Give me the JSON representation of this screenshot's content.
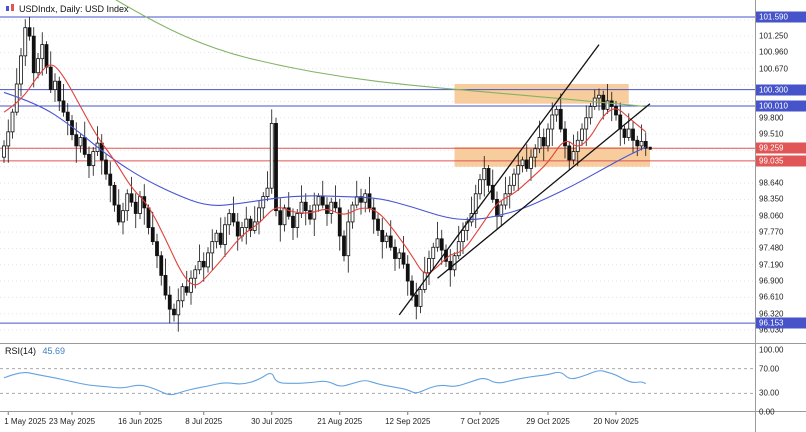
{
  "symbol_label": {
    "text": "USDIndx, Daily: USD Index"
  },
  "colors": {
    "up": "#ffffff",
    "down": "#111111",
    "candle_border": "#111111",
    "ma_fast": "#e2403a",
    "ma_mid": "#4a55d2",
    "ma_slow": "#82b366",
    "level_blue": "#4653c9",
    "level_red": "#e05555",
    "zone": "#f7cd9e",
    "trend": "#111111",
    "rsi": "#63a3e0",
    "grid": "#e3e3e3",
    "axis_text": "#222222",
    "separator": "#9a9a9a"
  },
  "price_axis": {
    "ticks": [
      {
        "label": "101.250",
        "price": 101.25
      },
      {
        "label": "100.960",
        "price": 100.96
      },
      {
        "label": "100.670",
        "price": 100.67
      },
      {
        "label": "99.800",
        "price": 99.8
      },
      {
        "label": "99.510",
        "price": 99.51
      },
      {
        "label": "98.640",
        "price": 98.64
      },
      {
        "label": "98.350",
        "price": 98.35
      },
      {
        "label": "98.060",
        "price": 98.06
      },
      {
        "label": "97.770",
        "price": 97.77
      },
      {
        "label": "97.480",
        "price": 97.48
      },
      {
        "label": "97.190",
        "price": 97.19
      },
      {
        "label": "96.900",
        "price": 96.9
      },
      {
        "label": "96.610",
        "price": 96.61
      },
      {
        "label": "96.320",
        "price": 96.32
      },
      {
        "label": "96.030",
        "price": 96.03
      }
    ]
  },
  "time_axis": {
    "labels": [
      {
        "text": "1 May 2025",
        "index": 1
      },
      {
        "text": "23 May 2025",
        "index": 16
      },
      {
        "text": "16 Jun 2025",
        "index": 32
      },
      {
        "text": "8 Jul 2025",
        "index": 47
      },
      {
        "text": "30 Jul 2025",
        "index": 63
      },
      {
        "text": "21 Aug 2025",
        "index": 79
      },
      {
        "text": "12 Sep 2025",
        "index": 95
      },
      {
        "text": "7 Oct 2025",
        "index": 112
      },
      {
        "text": "29 Oct 2025",
        "index": 128
      },
      {
        "text": "20 Nov 2025",
        "index": 144
      }
    ]
  },
  "chart_data": {
    "type": "candlestick",
    "instrument": "USDIndx",
    "timeframe": "Daily",
    "description": "USD Index",
    "price_range": [
      96.03,
      101.59
    ],
    "current_price": 99.259,
    "open_first": 99.1,
    "closes": [
      99.3,
      99.55,
      99.9,
      100.4,
      100.9,
      101.4,
      101.25,
      100.6,
      100.85,
      101.1,
      100.7,
      100.3,
      100.45,
      100.1,
      99.9,
      99.75,
      99.5,
      99.3,
      99.45,
      99.15,
      98.95,
      99.2,
      99.35,
      99.05,
      98.8,
      98.6,
      98.25,
      97.95,
      98.15,
      98.45,
      98.3,
      98.1,
      98.4,
      98.2,
      97.85,
      97.6,
      97.35,
      97.0,
      96.65,
      96.4,
      96.3,
      96.55,
      96.8,
      96.7,
      96.95,
      97.1,
      97.25,
      97.15,
      97.4,
      97.6,
      97.75,
      97.55,
      97.9,
      98.1,
      97.95,
      97.7,
      97.85,
      98.0,
      97.8,
      97.95,
      98.2,
      98.4,
      98.55,
      99.7,
      98.15,
      97.9,
      98.2,
      98.05,
      97.85,
      98.1,
      98.3,
      98.15,
      98.0,
      98.25,
      98.4,
      98.25,
      98.1,
      98.3,
      98.2,
      97.7,
      97.35,
      97.95,
      98.25,
      98.4,
      98.3,
      98.45,
      98.2,
      98.0,
      97.8,
      97.6,
      97.7,
      97.5,
      97.3,
      97.4,
      97.2,
      96.9,
      96.65,
      96.45,
      96.75,
      97.05,
      97.3,
      97.5,
      97.65,
      97.45,
      97.25,
      97.1,
      97.35,
      97.6,
      97.8,
      97.95,
      98.1,
      98.45,
      98.7,
      98.9,
      98.6,
      98.35,
      98.05,
      98.25,
      98.45,
      98.6,
      98.8,
      98.95,
      99.05,
      98.9,
      99.1,
      99.25,
      99.45,
      99.3,
      99.6,
      99.85,
      99.95,
      99.6,
      99.3,
      99.05,
      99.2,
      99.4,
      99.6,
      99.8,
      100.0,
      100.15,
      100.2,
      99.95,
      100.1,
      100.0,
      99.85,
      99.6,
      99.45,
      99.6,
      99.4,
      99.3,
      99.38,
      99.26
    ],
    "wick_high_cycle": [
      0.1,
      0.22,
      0.06,
      0.28,
      0.14,
      0.08,
      0.3,
      0.16
    ],
    "wick_low_cycle": [
      0.18,
      0.08,
      0.26,
      0.1,
      0.3,
      0.12,
      0.06,
      0.22
    ],
    "special_candles": {
      "5": {
        "h": 101.55
      },
      "6": {
        "h": 101.59
      },
      "39": {
        "l": 96.15
      },
      "40": {
        "l": 96.18
      },
      "63": {
        "h": 99.95,
        "l": 98.45
      },
      "97": {
        "l": 96.22
      },
      "139": {
        "h": 100.3
      },
      "140": {
        "h": 100.32
      },
      "151": {
        "l": 99.12
      }
    },
    "levels": [
      {
        "price": 101.59,
        "label": "101.590",
        "color_key": "level_blue"
      },
      {
        "price": 100.3,
        "label": "100.300",
        "color_key": "level_blue"
      },
      {
        "price": 100.01,
        "label": "100.010",
        "color_key": "level_blue"
      },
      {
        "price": 99.259,
        "label": "99.259",
        "color_key": "level_red"
      },
      {
        "price": 99.035,
        "label": "99.035",
        "color_key": "level_red"
      },
      {
        "price": 96.153,
        "label": "96.153",
        "color_key": "level_blue"
      }
    ],
    "zones": [
      {
        "price_top": 100.4,
        "price_bottom": 100.05,
        "index_from": 106,
        "index_to": 147
      },
      {
        "price_top": 99.28,
        "price_bottom": 98.93,
        "index_from": 106,
        "index_to": 152
      }
    ],
    "trendlines": [
      {
        "from": [
          93,
          96.3
        ],
        "to": [
          140,
          101.1
        ]
      },
      {
        "from": [
          102,
          96.95
        ],
        "to": [
          152,
          100.05
        ]
      }
    ],
    "moving_averages": [
      {
        "name": "ma-slow-green",
        "color_key": "ma_slow",
        "points": [
          [
            24,
            102.0
          ],
          [
            35,
            101.5
          ],
          [
            50,
            101.0
          ],
          [
            65,
            100.72
          ],
          [
            80,
            100.52
          ],
          [
            95,
            100.38
          ],
          [
            110,
            100.28
          ],
          [
            125,
            100.18
          ],
          [
            140,
            100.08
          ],
          [
            151,
            100.0
          ]
        ]
      },
      {
        "name": "ma-mid-blue",
        "color_key": "ma_mid",
        "points": [
          [
            0,
            100.25
          ],
          [
            8,
            100.05
          ],
          [
            16,
            99.65
          ],
          [
            24,
            99.15
          ],
          [
            32,
            98.75
          ],
          [
            40,
            98.45
          ],
          [
            48,
            98.22
          ],
          [
            56,
            98.28
          ],
          [
            64,
            98.38
          ],
          [
            72,
            98.42
          ],
          [
            80,
            98.4
          ],
          [
            88,
            98.38
          ],
          [
            96,
            98.22
          ],
          [
            104,
            98.02
          ],
          [
            110,
            97.98
          ],
          [
            116,
            98.05
          ],
          [
            122,
            98.18
          ],
          [
            128,
            98.38
          ],
          [
            134,
            98.6
          ],
          [
            140,
            98.85
          ],
          [
            146,
            99.1
          ],
          [
            151,
            99.28
          ]
        ]
      },
      {
        "name": "ma-fast-red",
        "color_key": "ma_fast",
        "points": [
          [
            0,
            99.9
          ],
          [
            4,
            100.1
          ],
          [
            8,
            100.55
          ],
          [
            11,
            100.8
          ],
          [
            14,
            100.55
          ],
          [
            18,
            100.0
          ],
          [
            22,
            99.45
          ],
          [
            26,
            99.05
          ],
          [
            30,
            98.55
          ],
          [
            34,
            98.25
          ],
          [
            38,
            97.65
          ],
          [
            42,
            97.0
          ],
          [
            45,
            96.78
          ],
          [
            48,
            97.0
          ],
          [
            52,
            97.35
          ],
          [
            56,
            97.72
          ],
          [
            60,
            97.92
          ],
          [
            64,
            98.25
          ],
          [
            68,
            98.12
          ],
          [
            72,
            98.1
          ],
          [
            76,
            98.2
          ],
          [
            80,
            98.05
          ],
          [
            84,
            98.22
          ],
          [
            88,
            98.15
          ],
          [
            92,
            97.78
          ],
          [
            96,
            97.35
          ],
          [
            99,
            96.98
          ],
          [
            102,
            97.15
          ],
          [
            105,
            97.38
          ],
          [
            108,
            97.42
          ],
          [
            112,
            97.85
          ],
          [
            116,
            98.3
          ],
          [
            120,
            98.45
          ],
          [
            124,
            98.72
          ],
          [
            128,
            99.0
          ],
          [
            132,
            99.45
          ],
          [
            135,
            99.25
          ],
          [
            138,
            99.45
          ],
          [
            141,
            99.85
          ],
          [
            144,
            100.0
          ],
          [
            147,
            99.8
          ],
          [
            151,
            99.55
          ]
        ]
      }
    ],
    "rsi": {
      "label": "RSI(14)",
      "value": "45.69",
      "scale": [
        {
          "label": "100.00",
          "value": 100
        },
        {
          "label": "70.00",
          "value": 70
        },
        {
          "label": "30.00",
          "value": 30
        },
        {
          "label": "0.00",
          "value": 0
        }
      ],
      "dashed_levels": [
        70,
        30
      ],
      "points": [
        [
          0,
          55
        ],
        [
          4,
          66
        ],
        [
          8,
          60
        ],
        [
          12,
          55
        ],
        [
          16,
          49
        ],
        [
          20,
          43
        ],
        [
          24,
          41
        ],
        [
          28,
          38
        ],
        [
          32,
          45
        ],
        [
          36,
          36
        ],
        [
          39,
          26
        ],
        [
          42,
          33
        ],
        [
          45,
          38
        ],
        [
          48,
          42
        ],
        [
          52,
          48
        ],
        [
          56,
          44
        ],
        [
          60,
          52
        ],
        [
          63,
          66
        ],
        [
          64,
          47
        ],
        [
          68,
          46
        ],
        [
          72,
          47
        ],
        [
          76,
          51
        ],
        [
          79,
          40
        ],
        [
          82,
          46
        ],
        [
          85,
          52
        ],
        [
          88,
          45
        ],
        [
          92,
          40
        ],
        [
          95,
          36
        ],
        [
          97,
          29
        ],
        [
          100,
          39
        ],
        [
          103,
          44
        ],
        [
          106,
          40
        ],
        [
          110,
          49
        ],
        [
          113,
          56
        ],
        [
          116,
          45
        ],
        [
          120,
          52
        ],
        [
          124,
          57
        ],
        [
          128,
          60
        ],
        [
          131,
          66
        ],
        [
          133,
          52
        ],
        [
          136,
          57
        ],
        [
          140,
          68
        ],
        [
          142,
          64
        ],
        [
          144,
          60
        ],
        [
          146,
          52
        ],
        [
          148,
          47
        ],
        [
          150,
          49
        ],
        [
          151,
          45.69
        ]
      ]
    }
  }
}
